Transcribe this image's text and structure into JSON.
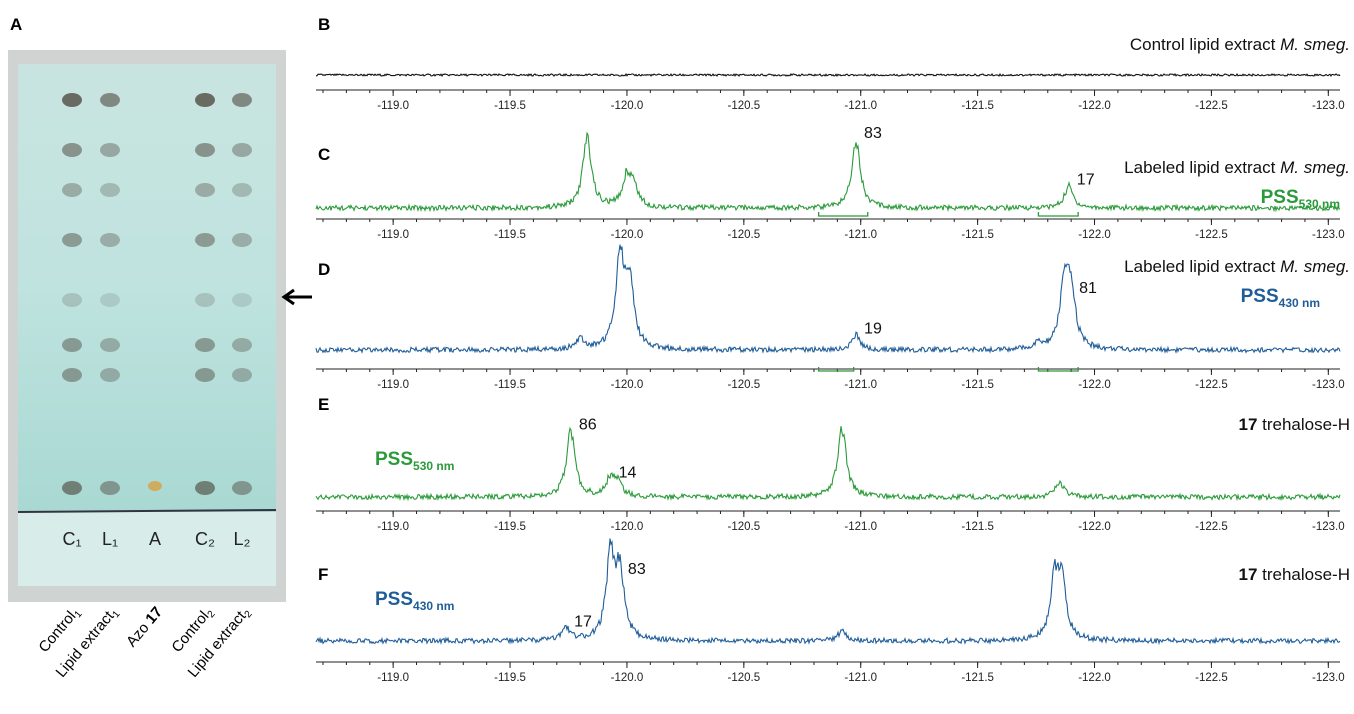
{
  "plate": {
    "label": "A",
    "lane_marks": [
      "C₁",
      "L₁",
      "A",
      "C₂",
      "L₂"
    ],
    "lanes": [
      {
        "text": "Control",
        "sub": "1"
      },
      {
        "text": "Lipid extract",
        "sub": "1"
      },
      {
        "text": "Azo",
        "bold": "17"
      },
      {
        "text": "Control",
        "sub": "2"
      },
      {
        "text": "Lipid extract",
        "sub": "2"
      }
    ]
  },
  "spectra": [
    {
      "label": "B",
      "title": "Control lipid extract",
      "species": "M. smeg.",
      "color": "#111111",
      "peaks": []
    },
    {
      "label": "C",
      "title": "Labeled lipid extract",
      "species": "M. smeg.",
      "color": "#2a9a3a",
      "pss": {
        "text": "PSS",
        "sub": "530 nm"
      },
      "peaks": [
        {
          "x": -119.83,
          "height": 100
        },
        {
          "x": -120.0,
          "height": 43
        },
        {
          "x": -120.03,
          "height": 26
        },
        {
          "x": -120.98,
          "height": 97,
          "integral": 83
        },
        {
          "x": -121.89,
          "height": 31,
          "integral": 17
        }
      ],
      "integration": [
        [
          -120.82,
          -121.03
        ],
        [
          -121.76,
          -121.93
        ]
      ]
    },
    {
      "label": "D",
      "title": "Labeled lipid extract",
      "species": "M. smeg.",
      "color": "#1f5d99",
      "pss": {
        "text": "PSS",
        "sub": "430 nm"
      },
      "peaks": [
        {
          "x": -119.8,
          "height": 11
        },
        {
          "x": -119.97,
          "height": 100
        },
        {
          "x": -120.01,
          "height": 72
        },
        {
          "x": -120.98,
          "height": 16,
          "integral": 19
        },
        {
          "x": -121.76,
          "height": 6
        },
        {
          "x": -121.87,
          "height": 67
        },
        {
          "x": -121.9,
          "height": 61,
          "integral": 81
        }
      ],
      "integration": [
        [
          -120.82,
          -120.97
        ],
        [
          -121.76,
          -121.93
        ]
      ]
    },
    {
      "label": "E",
      "compound": "17",
      "title": "trehalose-H",
      "color": "#2a9a3a",
      "pss": {
        "text": "PSS",
        "sub": "530 nm"
      },
      "peaks": [
        {
          "x": -119.76,
          "height": 96,
          "integral": 86
        },
        {
          "x": -119.93,
          "height": 26,
          "integral": 14
        },
        {
          "x": -119.96,
          "height": 18
        },
        {
          "x": -120.92,
          "height": 100
        },
        {
          "x": -121.85,
          "height": 21
        }
      ]
    },
    {
      "label": "F",
      "compound": "17",
      "title": "trehalose-H",
      "color": "#1f5d99",
      "pss": {
        "text": "PSS",
        "sub": "430 nm"
      },
      "peaks": [
        {
          "x": -119.74,
          "height": 15,
          "integral": 17
        },
        {
          "x": -119.93,
          "height": 100
        },
        {
          "x": -119.97,
          "height": 79,
          "integral": 83
        },
        {
          "x": -120.92,
          "height": 12
        },
        {
          "x": -121.83,
          "height": 71
        },
        {
          "x": -121.86,
          "height": 63
        }
      ]
    }
  ],
  "xlim": [
    -118.67,
    -123.05
  ],
  "xticks": [
    {
      "value": -119,
      "label": "-119.0"
    },
    {
      "value": -119.5,
      "label": "-119.5"
    },
    {
      "value": -120,
      "label": "-120.0"
    },
    {
      "value": -120.5,
      "label": "-120.5"
    },
    {
      "value": -121,
      "label": "-121.0"
    },
    {
      "value": -121.5,
      "label": "-121.5"
    },
    {
      "value": -122,
      "label": "-122.0"
    },
    {
      "value": -122.5,
      "label": "-122.5"
    },
    {
      "value": -123,
      "label": "-123.0"
    }
  ]
}
